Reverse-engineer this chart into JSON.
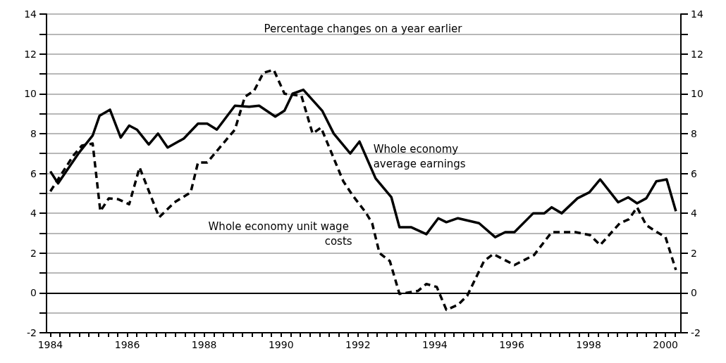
{
  "chart_data": {
    "type": "line",
    "title": "Percentage changes on a year earlier",
    "xlim": [
      1983.9,
      2000.4
    ],
    "xticks": [
      1984,
      {
        "value": 1984.25,
        "label": null
      },
      {
        "value": 1984.5,
        "label": null
      },
      {
        "value": 1984.75,
        "label": null
      },
      {
        "value": 1985,
        "label": null
      },
      {
        "value": 1985.25,
        "label": null
      },
      {
        "value": 1985.5,
        "label": null
      },
      {
        "value": 1985.75,
        "label": null
      },
      1986,
      {
        "value": 1986.25,
        "label": null
      },
      {
        "value": 1986.5,
        "label": null
      },
      {
        "value": 1986.75,
        "label": null
      },
      {
        "value": 1987,
        "label": null
      },
      {
        "value": 1987.25,
        "label": null
      },
      {
        "value": 1987.5,
        "label": null
      },
      {
        "value": 1987.75,
        "label": null
      },
      1988,
      {
        "value": 1988.25,
        "label": null
      },
      {
        "value": 1988.5,
        "label": null
      },
      {
        "value": 1988.75,
        "label": null
      },
      {
        "value": 1989,
        "label": null
      },
      {
        "value": 1989.25,
        "label": null
      },
      {
        "value": 1989.5,
        "label": null
      },
      {
        "value": 1989.75,
        "label": null
      },
      1990,
      {
        "value": 1990.25,
        "label": null
      },
      {
        "value": 1990.5,
        "label": null
      },
      {
        "value": 1990.75,
        "label": null
      },
      {
        "value": 1991,
        "label": null
      },
      {
        "value": 1991.25,
        "label": null
      },
      {
        "value": 1991.5,
        "label": null
      },
      {
        "value": 1991.75,
        "label": null
      },
      1992,
      {
        "value": 1992.25,
        "label": null
      },
      {
        "value": 1992.5,
        "label": null
      },
      {
        "value": 1992.75,
        "label": null
      },
      {
        "value": 1993,
        "label": null
      },
      {
        "value": 1993.25,
        "label": null
      },
      {
        "value": 1993.5,
        "label": null
      },
      {
        "value": 1993.75,
        "label": null
      },
      1994,
      {
        "value": 1994.25,
        "label": null
      },
      {
        "value": 1994.5,
        "label": null
      },
      {
        "value": 1994.75,
        "label": null
      },
      {
        "value": 1995,
        "label": null
      },
      {
        "value": 1995.25,
        "label": null
      },
      {
        "value": 1995.5,
        "label": null
      },
      {
        "value": 1995.75,
        "label": null
      },
      1996,
      {
        "value": 1996.25,
        "label": null
      },
      {
        "value": 1996.5,
        "label": null
      },
      {
        "value": 1996.75,
        "label": null
      },
      {
        "value": 1997,
        "label": null
      },
      {
        "value": 1997.25,
        "label": null
      },
      {
        "value": 1997.5,
        "label": null
      },
      {
        "value": 1997.75,
        "label": null
      },
      1998,
      {
        "value": 1998.25,
        "label": null
      },
      {
        "value": 1998.5,
        "label": null
      },
      {
        "value": 1998.75,
        "label": null
      },
      {
        "value": 1999,
        "label": null
      },
      {
        "value": 1999.25,
        "label": null
      },
      {
        "value": 1999.5,
        "label": null
      },
      {
        "value": 1999.75,
        "label": null
      },
      2000,
      {
        "value": 2000.25,
        "label": null
      }
    ],
    "ylim": [
      -2,
      14
    ],
    "yticks": [
      -2,
      {
        "value": -1,
        "label": null
      },
      0,
      {
        "value": 1,
        "label": null
      },
      2,
      {
        "value": 3,
        "label": null
      },
      4,
      {
        "value": 5,
        "label": null
      },
      6,
      {
        "value": 7,
        "label": null
      },
      8,
      {
        "value": 9,
        "label": null
      },
      10,
      {
        "value": 11,
        "label": null
      },
      12,
      {
        "value": 13,
        "label": null
      },
      14
    ],
    "y2lim": [
      -2,
      14
    ],
    "y2ticks": [
      -2,
      {
        "value": -1,
        "label": null
      },
      0,
      {
        "value": 1,
        "label": null
      },
      2,
      {
        "value": 3,
        "label": null
      },
      4,
      {
        "value": 5,
        "label": null
      },
      6,
      {
        "value": 7,
        "label": null
      },
      8,
      {
        "value": 9,
        "label": null
      },
      10,
      {
        "value": 11,
        "label": null
      },
      12,
      {
        "value": 13,
        "label": null
      },
      14
    ],
    "grid": "y",
    "legend": false,
    "marker": "none",
    "ref_lines": [
      {
        "axis": "y",
        "value": 0,
        "color": "#000000"
      }
    ],
    "series": [
      {
        "name": "Whole economy average earnings",
        "color": "#000000",
        "line_style": "solid",
        "x": [
          1984.0,
          1984.2,
          1984.73,
          1985.1,
          1985.28,
          1985.55,
          1985.83,
          1986.05,
          1986.25,
          1986.56,
          1986.8,
          1987.05,
          1987.47,
          1987.84,
          1988.08,
          1988.33,
          1988.8,
          1989.17,
          1989.43,
          1989.85,
          1990.09,
          1990.3,
          1990.58,
          1991.07,
          1991.37,
          1991.8,
          1992.04,
          1992.46,
          1992.87,
          1993.08,
          1993.38,
          1993.78,
          1994.09,
          1994.3,
          1994.6,
          1995.15,
          1995.57,
          1995.83,
          1996.07,
          1996.56,
          1996.85,
          1997.04,
          1997.3,
          1997.71,
          1998.02,
          1998.3,
          1998.77,
          1999.03,
          1999.26,
          1999.5,
          1999.76,
          2000.03,
          2000.27
        ],
        "values": [
          6.1,
          5.5,
          7.0,
          7.9,
          8.9,
          9.2,
          7.8,
          8.4,
          8.2,
          7.45,
          8.0,
          7.3,
          7.75,
          8.5,
          8.5,
          8.2,
          9.4,
          9.35,
          9.4,
          8.85,
          9.15,
          10.0,
          10.2,
          9.15,
          8.0,
          7.0,
          7.6,
          5.75,
          4.8,
          3.3,
          3.3,
          2.95,
          3.75,
          3.55,
          3.75,
          3.5,
          2.8,
          3.05,
          3.05,
          4.0,
          4.0,
          4.3,
          4.0,
          4.75,
          5.05,
          5.7,
          4.55,
          4.8,
          4.5,
          4.75,
          5.6,
          5.7,
          4.1
        ]
      },
      {
        "name": "Whole economy unit wage costs",
        "color": "#000000",
        "line_style": "dashed",
        "x": [
          1984.0,
          1984.6,
          1984.82,
          1985.1,
          1985.3,
          1985.52,
          1985.77,
          1986.05,
          1986.32,
          1986.83,
          1987.23,
          1987.65,
          1987.84,
          1988.08,
          1988.8,
          1989.06,
          1989.3,
          1989.54,
          1989.81,
          1990.09,
          1990.53,
          1990.82,
          1991.04,
          1991.62,
          1991.86,
          1992.2,
          1992.37,
          1992.56,
          1992.83,
          1993.08,
          1993.56,
          1993.78,
          1994.05,
          1994.3,
          1994.6,
          1994.84,
          1995.28,
          1995.52,
          1996.07,
          1996.58,
          1997.04,
          1997.66,
          1998.04,
          1998.3,
          1998.81,
          1999.05,
          1999.26,
          1999.5,
          1999.78,
          2000.0,
          2000.27
        ],
        "values": [
          5.1,
          6.9,
          7.4,
          7.5,
          4.1,
          4.75,
          4.7,
          4.45,
          6.3,
          3.8,
          4.55,
          5.05,
          6.55,
          6.55,
          8.2,
          9.85,
          10.15,
          11.05,
          11.2,
          10.0,
          9.9,
          8.0,
          8.3,
          5.6,
          4.9,
          4.05,
          3.5,
          2.0,
          1.6,
          -0.05,
          0.1,
          0.45,
          0.3,
          -0.85,
          -0.6,
          -0.15,
          1.6,
          1.95,
          1.4,
          1.9,
          3.05,
          3.05,
          2.9,
          2.4,
          3.5,
          3.7,
          4.3,
          3.4,
          3.05,
          2.8,
          1.15
        ]
      }
    ]
  }
}
